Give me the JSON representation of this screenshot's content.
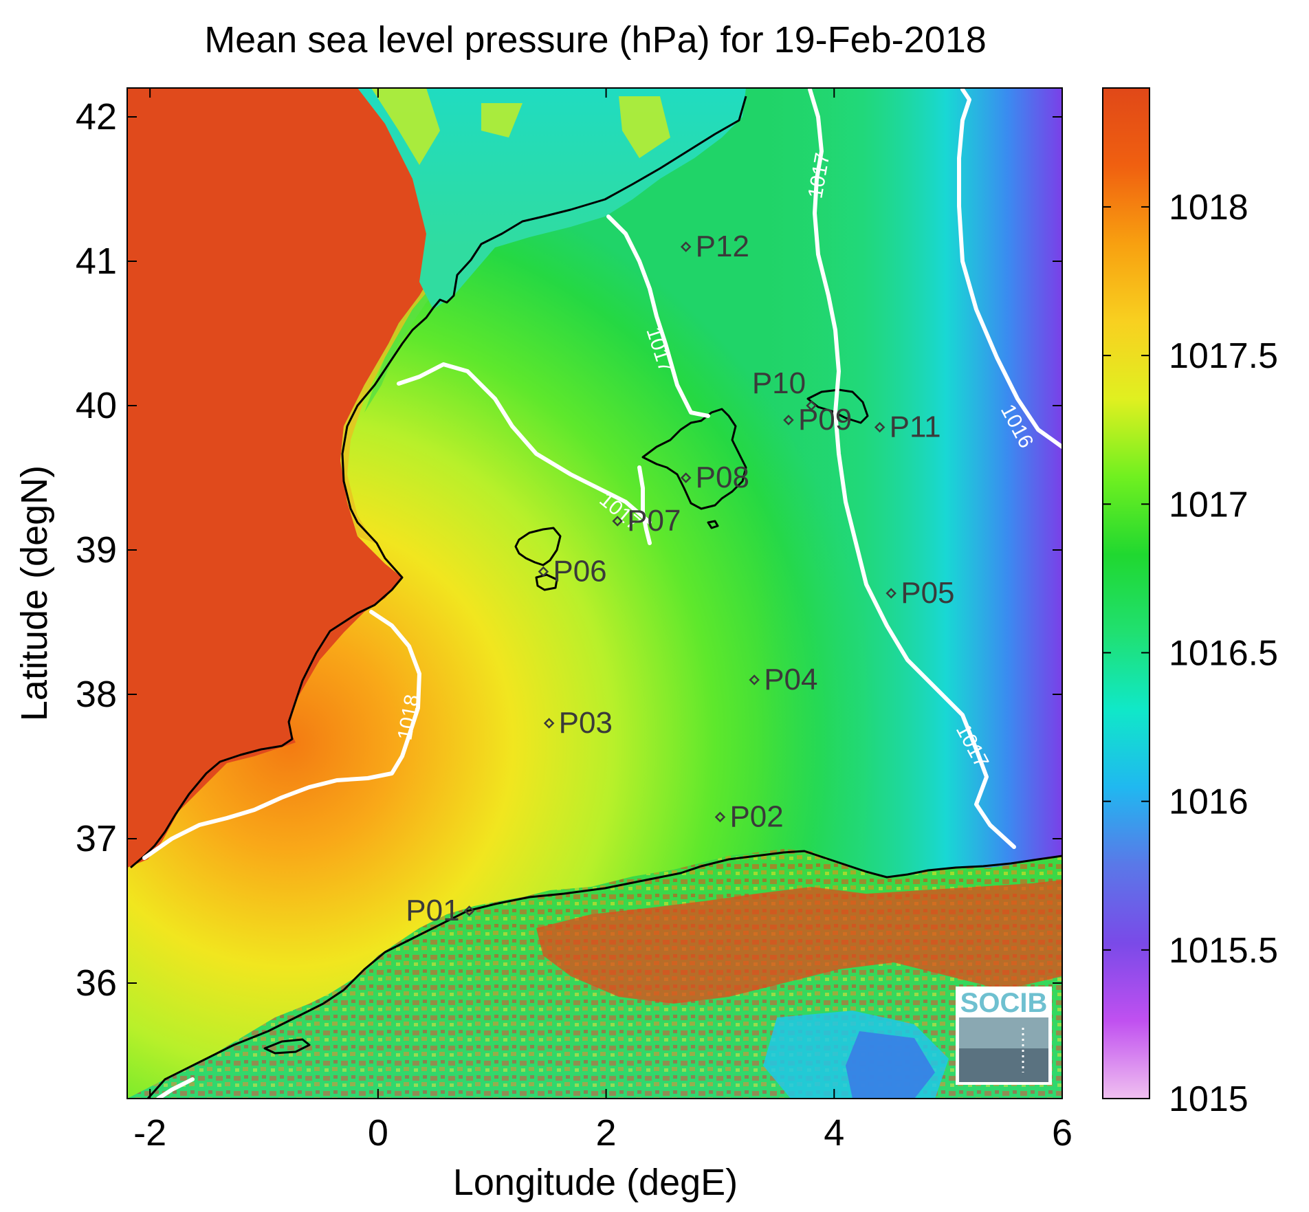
{
  "title": "Mean sea level pressure (hPa) for 19-Feb-2018",
  "xlabel": "Longitude (degE)",
  "ylabel": "Latitude (degN)",
  "x_ticks": [
    "-2",
    "0",
    "2",
    "4",
    "6"
  ],
  "y_ticks": [
    "36",
    "37",
    "38",
    "39",
    "40",
    "41",
    "42"
  ],
  "colorbar_ticks": [
    "1015",
    "1015.5",
    "1016",
    "1016.5",
    "1017",
    "1017.5",
    "1018"
  ],
  "colorbar_stops": [
    "#f0c0f0",
    "#c050f0",
    "#7a4ae8",
    "#5a78e8",
    "#20b8f0",
    "#10e8c8",
    "#20e070",
    "#20d830",
    "#70f020",
    "#e0f020",
    "#f8d020",
    "#f8a010",
    "#f06010",
    "#e04818"
  ],
  "contour_labels": {
    "c1016": "1016",
    "c1017_a": "1017",
    "c1017_b": "1017",
    "c1017_c": "1017",
    "c1017_d": "1017",
    "c1018": "1018"
  },
  "logo_text": "SOCIB",
  "chart_data": {
    "type": "map",
    "title": "Mean sea level pressure (hPa) for 19-Feb-2018",
    "xlabel": "Longitude (degE)",
    "ylabel": "Latitude (degN)",
    "xlim": [
      -2.2,
      6.0
    ],
    "ylim": [
      35.2,
      42.2
    ],
    "colorbar_range": [
      1015,
      1018.4
    ],
    "contour_levels": [
      1016,
      1017,
      1018
    ],
    "points": [
      {
        "label": "P01",
        "lon": 0.8,
        "lat": 36.5
      },
      {
        "label": "P02",
        "lon": 3.0,
        "lat": 37.15
      },
      {
        "label": "P03",
        "lon": 1.5,
        "lat": 37.8
      },
      {
        "label": "P04",
        "lon": 3.3,
        "lat": 38.1
      },
      {
        "label": "P05",
        "lon": 4.5,
        "lat": 38.7
      },
      {
        "label": "P06",
        "lon": 1.45,
        "lat": 38.85
      },
      {
        "label": "P07",
        "lon": 2.1,
        "lat": 39.2
      },
      {
        "label": "P08",
        "lon": 2.7,
        "lat": 39.5
      },
      {
        "label": "P09",
        "lon": 3.6,
        "lat": 39.9
      },
      {
        "label": "P10",
        "lon": 3.8,
        "lat": 40.0
      },
      {
        "label": "P11",
        "lon": 4.4,
        "lat": 39.85
      },
      {
        "label": "P12",
        "lon": 2.7,
        "lat": 41.1
      }
    ]
  }
}
